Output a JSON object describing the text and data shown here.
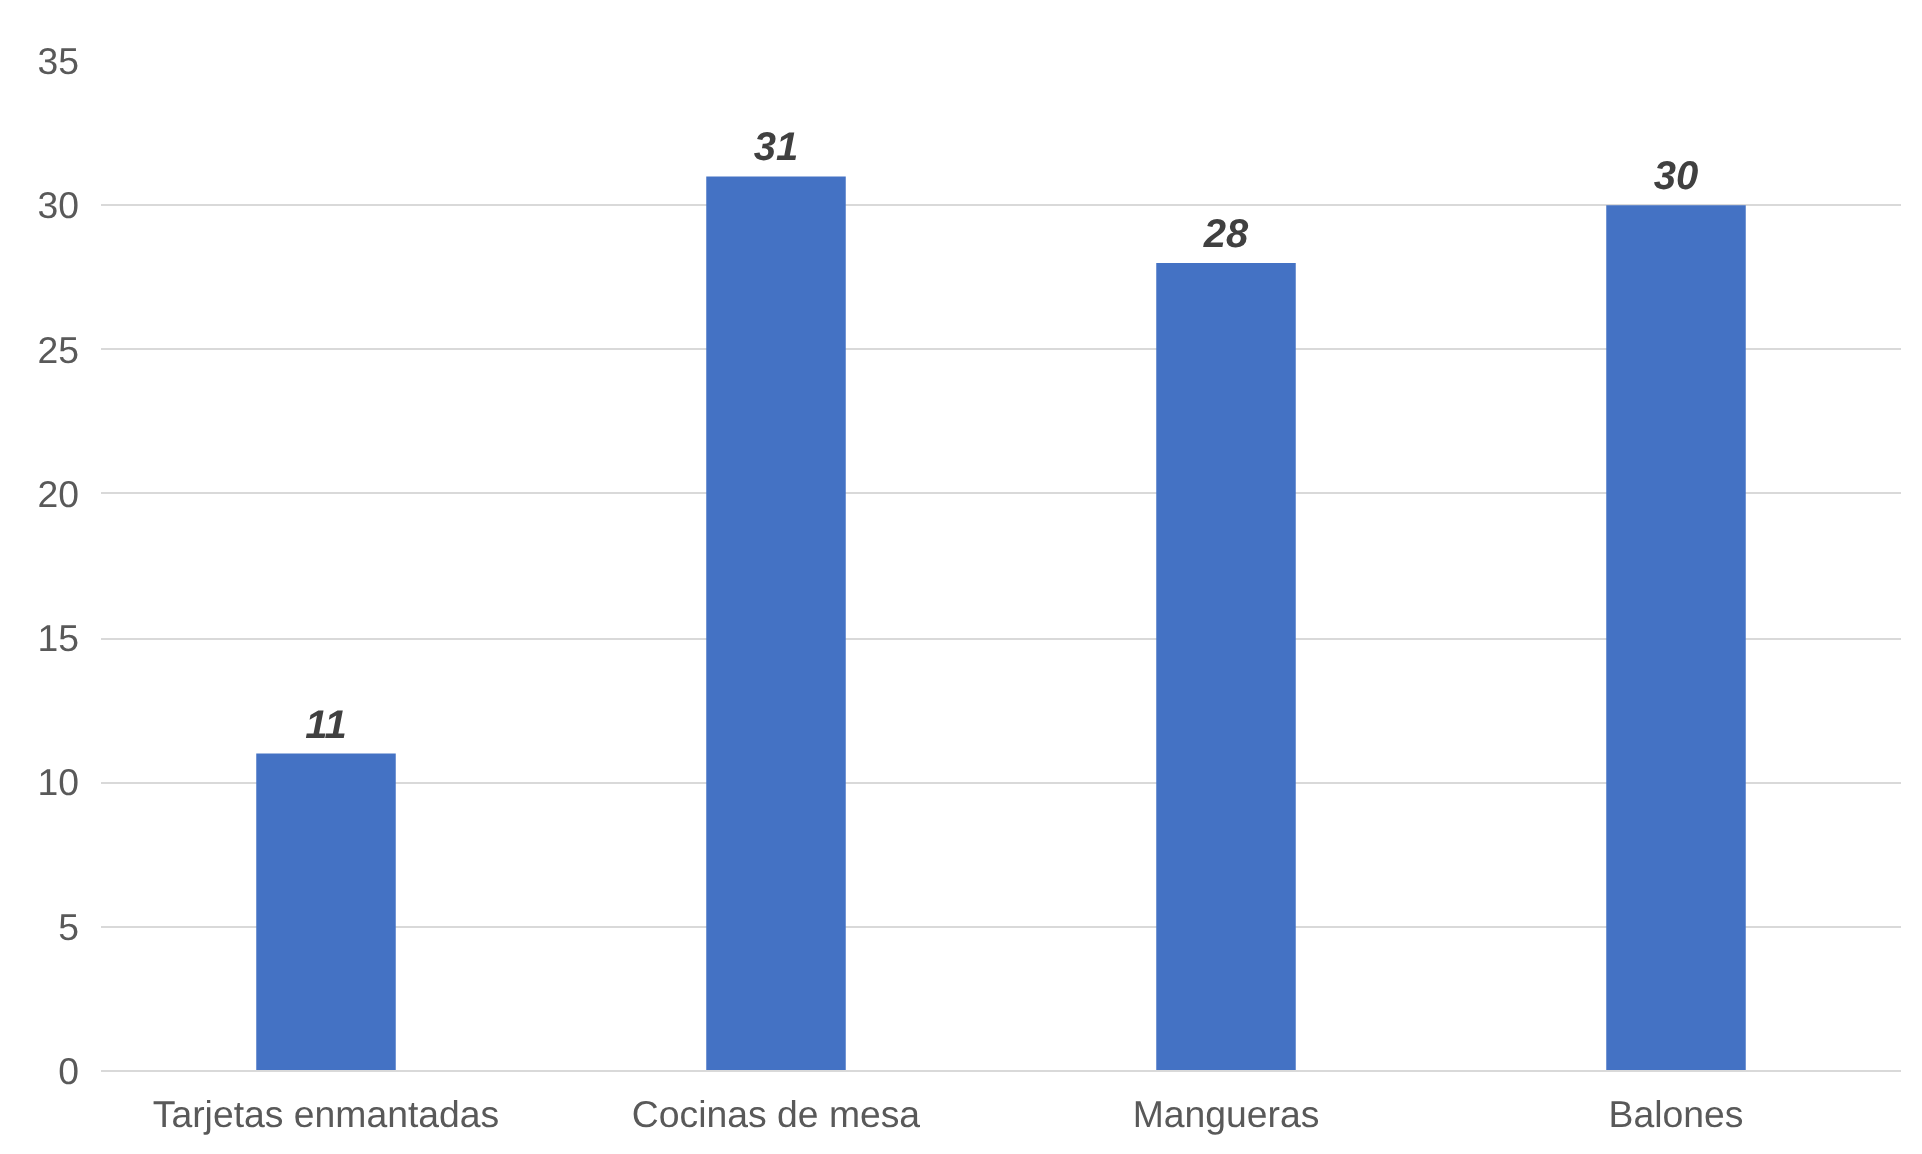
{
  "chart_data": {
    "type": "bar",
    "categories": [
      "Tarjetas enmantadas",
      "Cocinas de mesa",
      "Mangueras",
      "Balones"
    ],
    "values": [
      11,
      31,
      28,
      30
    ],
    "color": "#4472c4",
    "ylim": [
      0,
      35
    ],
    "yticks": [
      0,
      5,
      10,
      15,
      20,
      25,
      30,
      35
    ],
    "grid": "y",
    "data_labels": true
  }
}
